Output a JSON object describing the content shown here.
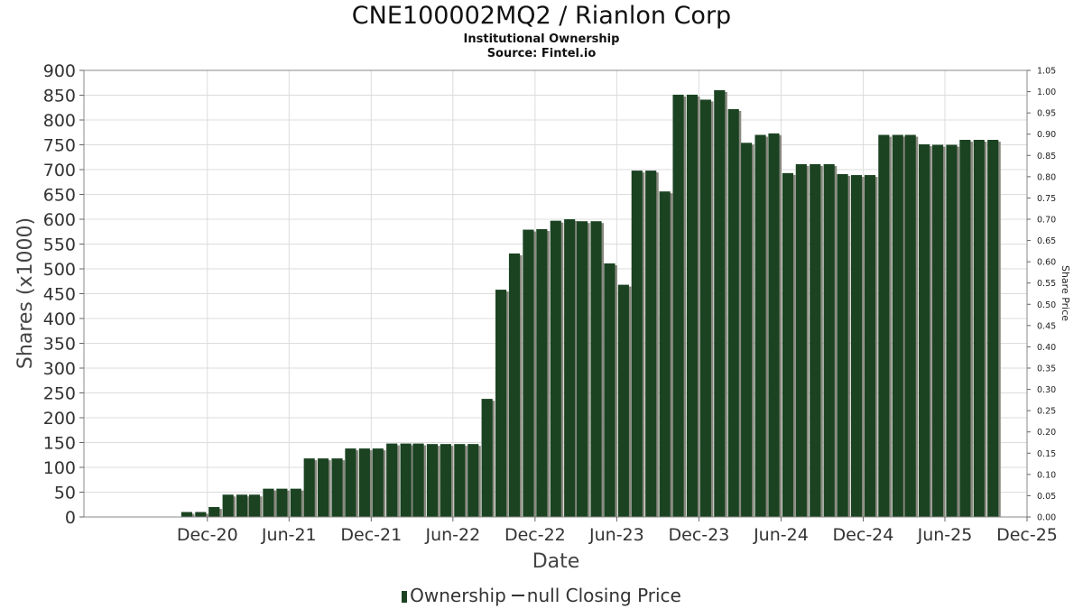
{
  "header": {
    "title": "CNE100002MQ2 / Rianlon Corp",
    "subtitle": "Institutional Ownership",
    "source": "Source: Fintel.io"
  },
  "legend": {
    "ownership": "Ownership",
    "price": "null Closing Price"
  },
  "colors": {
    "bar": "#1b4322",
    "bar_shadow": "#8a8a80",
    "grid": "#dcdcdc",
    "axis": "#666666"
  },
  "chart_data": {
    "type": "bar",
    "title": "CNE100002MQ2 / Rianlon Corp",
    "subtitle": "Institutional Ownership",
    "xlabel": "Date",
    "ylabel": "Shares (x1000)",
    "y2label": "Share Price",
    "ylim": [
      0,
      900
    ],
    "y2lim": [
      0,
      1.05
    ],
    "yticks": [
      "0",
      "50",
      "100",
      "150",
      "200",
      "250",
      "300",
      "350",
      "400",
      "450",
      "500",
      "550",
      "600",
      "650",
      "700",
      "750",
      "800",
      "850",
      "900"
    ],
    "y2ticks": [
      "0.00",
      "0.05",
      "0.10",
      "0.15",
      "0.20",
      "0.25",
      "0.30",
      "0.35",
      "0.40",
      "0.45",
      "0.50",
      "0.55",
      "0.60",
      "0.65",
      "0.70",
      "0.75",
      "0.80",
      "0.85",
      "0.90",
      "0.95",
      "1.00",
      "1.05"
    ],
    "xticks": [
      {
        "label": "Dec-20",
        "date": "2020-12-01"
      },
      {
        "label": "Jun-21",
        "date": "2021-06-01"
      },
      {
        "label": "Dec-21",
        "date": "2021-12-01"
      },
      {
        "label": "Jun-22",
        "date": "2022-06-01"
      },
      {
        "label": "Dec-22",
        "date": "2022-12-01"
      },
      {
        "label": "Jun-23",
        "date": "2023-06-01"
      },
      {
        "label": "Dec-23",
        "date": "2023-12-01"
      },
      {
        "label": "Jun-24",
        "date": "2024-06-01"
      },
      {
        "label": "Dec-24",
        "date": "2024-12-01"
      },
      {
        "label": "Jun-25",
        "date": "2025-06-01"
      },
      {
        "label": "Dec-25",
        "date": "2025-12-01"
      }
    ],
    "xrange": [
      "2020-03-01",
      "2025-12-01"
    ],
    "grid": true,
    "legend_position": "bottom",
    "series": [
      {
        "name": "Ownership",
        "points": [
          {
            "date": "2020-10-16",
            "value": 10
          },
          {
            "date": "2020-11-16",
            "value": 10
          },
          {
            "date": "2020-12-16",
            "value": 20
          },
          {
            "date": "2021-01-16",
            "value": 45
          },
          {
            "date": "2021-02-16",
            "value": 45
          },
          {
            "date": "2021-03-16",
            "value": 45
          },
          {
            "date": "2021-04-16",
            "value": 57
          },
          {
            "date": "2021-05-16",
            "value": 57
          },
          {
            "date": "2021-06-16",
            "value": 57
          },
          {
            "date": "2021-07-16",
            "value": 118
          },
          {
            "date": "2021-08-16",
            "value": 118
          },
          {
            "date": "2021-09-16",
            "value": 118
          },
          {
            "date": "2021-10-16",
            "value": 138
          },
          {
            "date": "2021-11-16",
            "value": 138
          },
          {
            "date": "2021-12-16",
            "value": 138
          },
          {
            "date": "2022-01-16",
            "value": 148
          },
          {
            "date": "2022-02-16",
            "value": 148
          },
          {
            "date": "2022-03-16",
            "value": 148
          },
          {
            "date": "2022-04-16",
            "value": 147
          },
          {
            "date": "2022-05-16",
            "value": 147
          },
          {
            "date": "2022-06-16",
            "value": 147
          },
          {
            "date": "2022-07-16",
            "value": 147
          },
          {
            "date": "2022-08-16",
            "value": 238
          },
          {
            "date": "2022-09-16",
            "value": 458
          },
          {
            "date": "2022-10-16",
            "value": 531
          },
          {
            "date": "2022-11-16",
            "value": 579
          },
          {
            "date": "2022-12-16",
            "value": 580
          },
          {
            "date": "2023-01-16",
            "value": 597
          },
          {
            "date": "2023-02-16",
            "value": 600
          },
          {
            "date": "2023-03-16",
            "value": 596
          },
          {
            "date": "2023-04-16",
            "value": 596
          },
          {
            "date": "2023-05-16",
            "value": 511
          },
          {
            "date": "2023-06-16",
            "value": 468
          },
          {
            "date": "2023-07-16",
            "value": 698
          },
          {
            "date": "2023-08-16",
            "value": 698
          },
          {
            "date": "2023-09-16",
            "value": 656
          },
          {
            "date": "2023-10-16",
            "value": 851
          },
          {
            "date": "2023-11-16",
            "value": 851
          },
          {
            "date": "2023-12-16",
            "value": 841
          },
          {
            "date": "2024-01-16",
            "value": 860
          },
          {
            "date": "2024-02-16",
            "value": 822
          },
          {
            "date": "2024-03-16",
            "value": 754
          },
          {
            "date": "2024-04-16",
            "value": 770
          },
          {
            "date": "2024-05-16",
            "value": 773
          },
          {
            "date": "2024-06-16",
            "value": 693
          },
          {
            "date": "2024-07-16",
            "value": 711
          },
          {
            "date": "2024-08-16",
            "value": 711
          },
          {
            "date": "2024-09-16",
            "value": 711
          },
          {
            "date": "2024-10-16",
            "value": 691
          },
          {
            "date": "2024-11-16",
            "value": 689
          },
          {
            "date": "2024-12-16",
            "value": 689
          },
          {
            "date": "2025-01-16",
            "value": 770
          },
          {
            "date": "2025-02-16",
            "value": 770
          },
          {
            "date": "2025-03-16",
            "value": 770
          },
          {
            "date": "2025-04-16",
            "value": 751
          },
          {
            "date": "2025-05-16",
            "value": 750
          },
          {
            "date": "2025-06-16",
            "value": 750
          },
          {
            "date": "2025-07-16",
            "value": 760
          },
          {
            "date": "2025-08-16",
            "value": 760
          },
          {
            "date": "2025-09-16",
            "value": 760
          }
        ]
      }
    ]
  }
}
